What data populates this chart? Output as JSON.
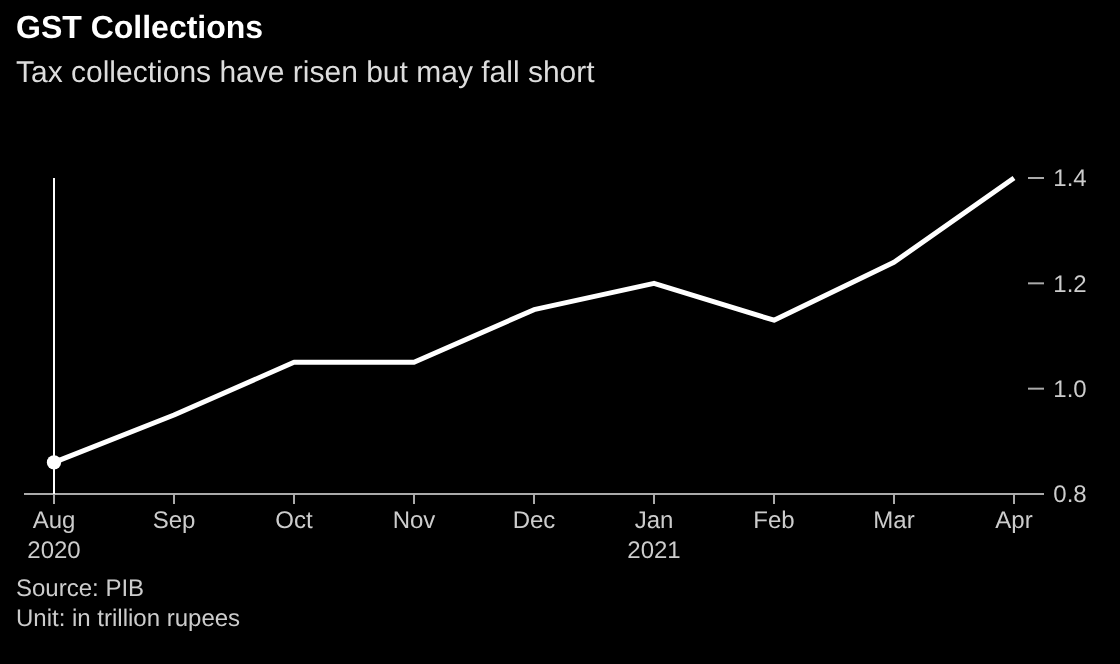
{
  "chart_data": {
    "type": "line",
    "title": "GST Collections",
    "subtitle": "Tax collections have risen but may fall short",
    "categories": [
      "Aug 2020",
      "Sep",
      "Oct",
      "Nov",
      "Dec",
      "Jan 2021",
      "Feb",
      "Mar",
      "Apr"
    ],
    "series": [
      {
        "color": "#ffffff",
        "values": [
          0.86,
          0.95,
          1.05,
          1.05,
          1.15,
          1.2,
          1.13,
          1.24,
          1.4
        ]
      },
      {
        "type": "scatter",
        "color": "#ffffff",
        "marker": "circle",
        "values": [
          0.86,
          null,
          null,
          null,
          null,
          null,
          null,
          null,
          null
        ]
      }
    ],
    "ylim": [
      0.8,
      1.4
    ],
    "yticks": [
      0.8,
      {
        "value": 1.0,
        "label": "1.0"
      },
      1.2,
      1.4
    ],
    "ref_lines": [
      {
        "axis": "x",
        "value": "Aug 2020",
        "color": "#ffffff"
      }
    ],
    "annotations": [
      "Source: PIB",
      "Unit: in trillion rupees"
    ]
  }
}
